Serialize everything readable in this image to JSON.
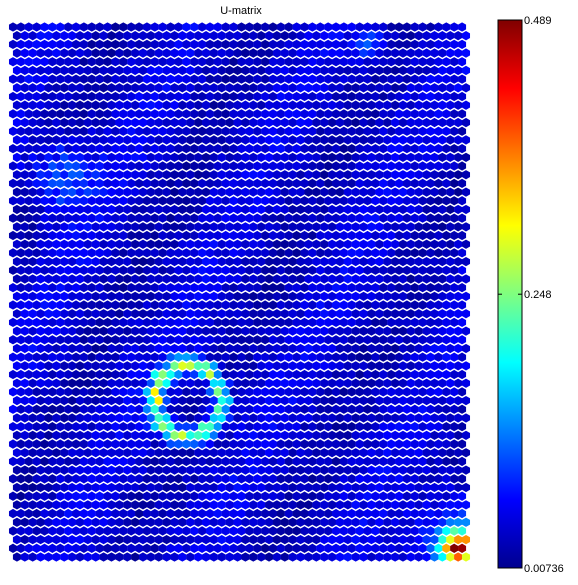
{
  "chart_data": {
    "type": "heatmap",
    "title": "U-matrix",
    "xlabel": "",
    "ylabel": "",
    "colorbar": {
      "min": 0.00736,
      "max": 0.489,
      "ticks": [
        {
          "value": 0.489,
          "label": "0.489"
        },
        {
          "value": 0.248,
          "label": "0.248"
        },
        {
          "value": 0.00736,
          "label": "0.00736"
        }
      ],
      "colormap": "jet"
    },
    "grid": {
      "shape": "hexagonal",
      "columns": 58,
      "rows": 62
    },
    "features": [
      {
        "name": "ring",
        "center": [
          22,
          43
        ],
        "radius": 4.2,
        "value": 0.3
      },
      {
        "name": "corner-peak",
        "center": [
          56,
          60
        ],
        "value": 0.46
      },
      {
        "name": "upper-left-cluster",
        "center": [
          6,
          17
        ],
        "value": 0.13
      },
      {
        "name": "top-cluster",
        "center": [
          45,
          2
        ],
        "value": 0.12
      }
    ],
    "background_value": 0.045
  }
}
